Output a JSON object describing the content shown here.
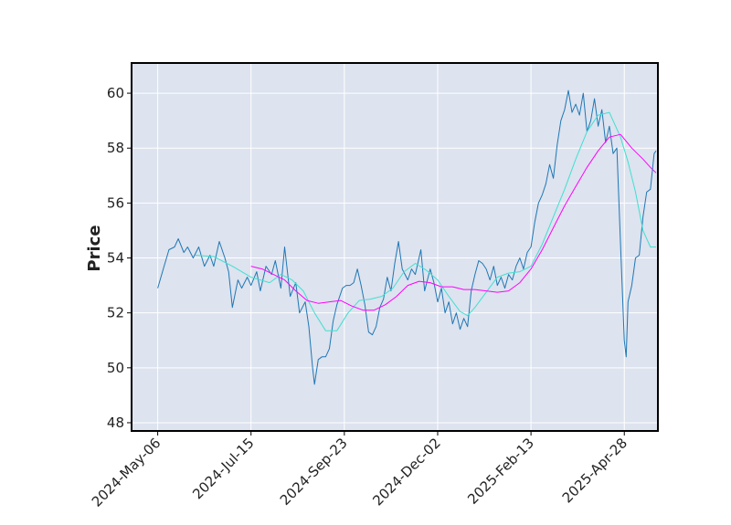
{
  "chart_data": {
    "type": "line",
    "ylabel": "Price",
    "xlabel": "",
    "x_ticks": [
      "2024-May-06",
      "2024-Jul-15",
      "2024-Sep-23",
      "2024-Dec-02",
      "2025-Feb-13",
      "2025-Apr-28"
    ],
    "x_tick_index": [
      0,
      50,
      100,
      150,
      200,
      250
    ],
    "y_ticks": [
      48,
      50,
      52,
      54,
      56,
      58,
      60
    ],
    "ylim": [
      47.7,
      61.1
    ],
    "xlim": [
      -14,
      268
    ],
    "grid": true,
    "background": "#dde3ef",
    "colors": {
      "price": "#1f77b4",
      "ma_short": "#40e0d0",
      "ma_long": "#ff00ff"
    },
    "series": [
      {
        "key": "price",
        "points": [
          [
            0,
            52.9
          ],
          [
            3,
            53.6
          ],
          [
            6,
            54.3
          ],
          [
            9,
            54.4
          ],
          [
            11,
            54.7
          ],
          [
            14,
            54.2
          ],
          [
            16,
            54.4
          ],
          [
            19,
            54.0
          ],
          [
            22,
            54.4
          ],
          [
            25,
            53.7
          ],
          [
            28,
            54.1
          ],
          [
            30,
            53.7
          ],
          [
            33,
            54.6
          ],
          [
            36,
            54.0
          ],
          [
            38,
            53.5
          ],
          [
            40,
            52.2
          ],
          [
            43,
            53.2
          ],
          [
            45,
            52.9
          ],
          [
            48,
            53.3
          ],
          [
            50,
            53.0
          ],
          [
            53,
            53.5
          ],
          [
            55,
            52.8
          ],
          [
            58,
            53.7
          ],
          [
            61,
            53.4
          ],
          [
            63,
            53.9
          ],
          [
            66,
            52.9
          ],
          [
            68,
            54.4
          ],
          [
            71,
            52.6
          ],
          [
            74,
            53.1
          ],
          [
            76,
            52.0
          ],
          [
            79,
            52.4
          ],
          [
            81,
            51.5
          ],
          [
            83,
            50.0
          ],
          [
            84,
            49.4
          ],
          [
            86,
            50.3
          ],
          [
            88,
            50.4
          ],
          [
            90,
            50.4
          ],
          [
            92,
            50.7
          ],
          [
            94,
            51.7
          ],
          [
            96,
            52.3
          ],
          [
            99,
            52.9
          ],
          [
            101,
            53.0
          ],
          [
            103,
            53.0
          ],
          [
            105,
            53.1
          ],
          [
            107,
            53.6
          ],
          [
            109,
            53.0
          ],
          [
            111,
            52.3
          ],
          [
            113,
            51.3
          ],
          [
            115,
            51.2
          ],
          [
            117,
            51.5
          ],
          [
            119,
            52.2
          ],
          [
            121,
            52.5
          ],
          [
            123,
            53.3
          ],
          [
            125,
            52.8
          ],
          [
            127,
            53.8
          ],
          [
            129,
            54.6
          ],
          [
            131,
            53.6
          ],
          [
            134,
            53.2
          ],
          [
            136,
            53.6
          ],
          [
            138,
            53.4
          ],
          [
            141,
            54.3
          ],
          [
            143,
            52.8
          ],
          [
            146,
            53.6
          ],
          [
            148,
            53.1
          ],
          [
            150,
            52.4
          ],
          [
            152,
            52.9
          ],
          [
            154,
            52.0
          ],
          [
            156,
            52.4
          ],
          [
            158,
            51.6
          ],
          [
            160,
            52.0
          ],
          [
            162,
            51.4
          ],
          [
            164,
            51.8
          ],
          [
            166,
            51.5
          ],
          [
            168,
            52.8
          ],
          [
            170,
            53.4
          ],
          [
            172,
            53.9
          ],
          [
            174,
            53.8
          ],
          [
            176,
            53.6
          ],
          [
            178,
            53.2
          ],
          [
            180,
            53.7
          ],
          [
            182,
            53.0
          ],
          [
            184,
            53.3
          ],
          [
            186,
            52.9
          ],
          [
            188,
            53.4
          ],
          [
            190,
            53.2
          ],
          [
            192,
            53.7
          ],
          [
            194,
            54.0
          ],
          [
            196,
            53.6
          ],
          [
            198,
            54.2
          ],
          [
            200,
            54.4
          ],
          [
            202,
            55.3
          ],
          [
            204,
            56.0
          ],
          [
            206,
            56.3
          ],
          [
            208,
            56.7
          ],
          [
            210,
            57.4
          ],
          [
            212,
            56.9
          ],
          [
            214,
            58.1
          ],
          [
            216,
            59.0
          ],
          [
            218,
            59.4
          ],
          [
            220,
            60.1
          ],
          [
            222,
            59.3
          ],
          [
            224,
            59.6
          ],
          [
            226,
            59.2
          ],
          [
            228,
            60.0
          ],
          [
            230,
            58.6
          ],
          [
            232,
            59.0
          ],
          [
            234,
            59.8
          ],
          [
            236,
            58.8
          ],
          [
            238,
            59.4
          ],
          [
            240,
            58.2
          ],
          [
            242,
            58.8
          ],
          [
            244,
            57.8
          ],
          [
            246,
            58.0
          ],
          [
            248,
            54.5
          ],
          [
            250,
            51.0
          ],
          [
            251,
            50.4
          ],
          [
            252,
            52.4
          ],
          [
            254,
            53.0
          ],
          [
            256,
            54.0
          ],
          [
            258,
            54.1
          ],
          [
            260,
            55.5
          ],
          [
            262,
            56.4
          ],
          [
            264,
            56.5
          ],
          [
            266,
            57.8
          ],
          [
            267,
            57.9
          ]
        ]
      },
      {
        "key": "ma_short",
        "points": [
          [
            20,
            54.1
          ],
          [
            30,
            54.05
          ],
          [
            40,
            53.7
          ],
          [
            50,
            53.3
          ],
          [
            60,
            53.1
          ],
          [
            66,
            53.4
          ],
          [
            72,
            53.2
          ],
          [
            78,
            52.8
          ],
          [
            84,
            52.0
          ],
          [
            90,
            51.35
          ],
          [
            96,
            51.35
          ],
          [
            102,
            52.0
          ],
          [
            108,
            52.45
          ],
          [
            114,
            52.5
          ],
          [
            120,
            52.6
          ],
          [
            126,
            52.9
          ],
          [
            132,
            53.5
          ],
          [
            138,
            53.8
          ],
          [
            144,
            53.55
          ],
          [
            150,
            53.2
          ],
          [
            156,
            52.6
          ],
          [
            162,
            52.05
          ],
          [
            166,
            51.9
          ],
          [
            170,
            52.2
          ],
          [
            176,
            52.75
          ],
          [
            182,
            53.3
          ],
          [
            188,
            53.45
          ],
          [
            194,
            53.5
          ],
          [
            200,
            53.7
          ],
          [
            206,
            54.5
          ],
          [
            212,
            55.5
          ],
          [
            218,
            56.5
          ],
          [
            224,
            57.6
          ],
          [
            230,
            58.6
          ],
          [
            236,
            59.2
          ],
          [
            242,
            59.3
          ],
          [
            248,
            58.4
          ],
          [
            252,
            57.5
          ],
          [
            256,
            56.4
          ],
          [
            260,
            55.0
          ],
          [
            264,
            54.4
          ],
          [
            267,
            54.4
          ]
        ]
      },
      {
        "key": "ma_long",
        "points": [
          [
            50,
            53.7
          ],
          [
            56,
            53.6
          ],
          [
            62,
            53.4
          ],
          [
            68,
            53.2
          ],
          [
            74,
            52.8
          ],
          [
            80,
            52.45
          ],
          [
            86,
            52.35
          ],
          [
            92,
            52.4
          ],
          [
            98,
            52.45
          ],
          [
            104,
            52.25
          ],
          [
            110,
            52.1
          ],
          [
            116,
            52.1
          ],
          [
            122,
            52.3
          ],
          [
            128,
            52.6
          ],
          [
            134,
            53.0
          ],
          [
            140,
            53.15
          ],
          [
            146,
            53.1
          ],
          [
            152,
            52.95
          ],
          [
            158,
            52.95
          ],
          [
            164,
            52.85
          ],
          [
            170,
            52.85
          ],
          [
            176,
            52.8
          ],
          [
            182,
            52.75
          ],
          [
            188,
            52.8
          ],
          [
            194,
            53.1
          ],
          [
            200,
            53.6
          ],
          [
            206,
            54.3
          ],
          [
            212,
            55.1
          ],
          [
            218,
            55.9
          ],
          [
            224,
            56.6
          ],
          [
            230,
            57.3
          ],
          [
            236,
            57.9
          ],
          [
            242,
            58.4
          ],
          [
            248,
            58.5
          ],
          [
            254,
            58.0
          ],
          [
            260,
            57.6
          ],
          [
            264,
            57.3
          ],
          [
            267,
            57.1
          ]
        ]
      }
    ]
  }
}
